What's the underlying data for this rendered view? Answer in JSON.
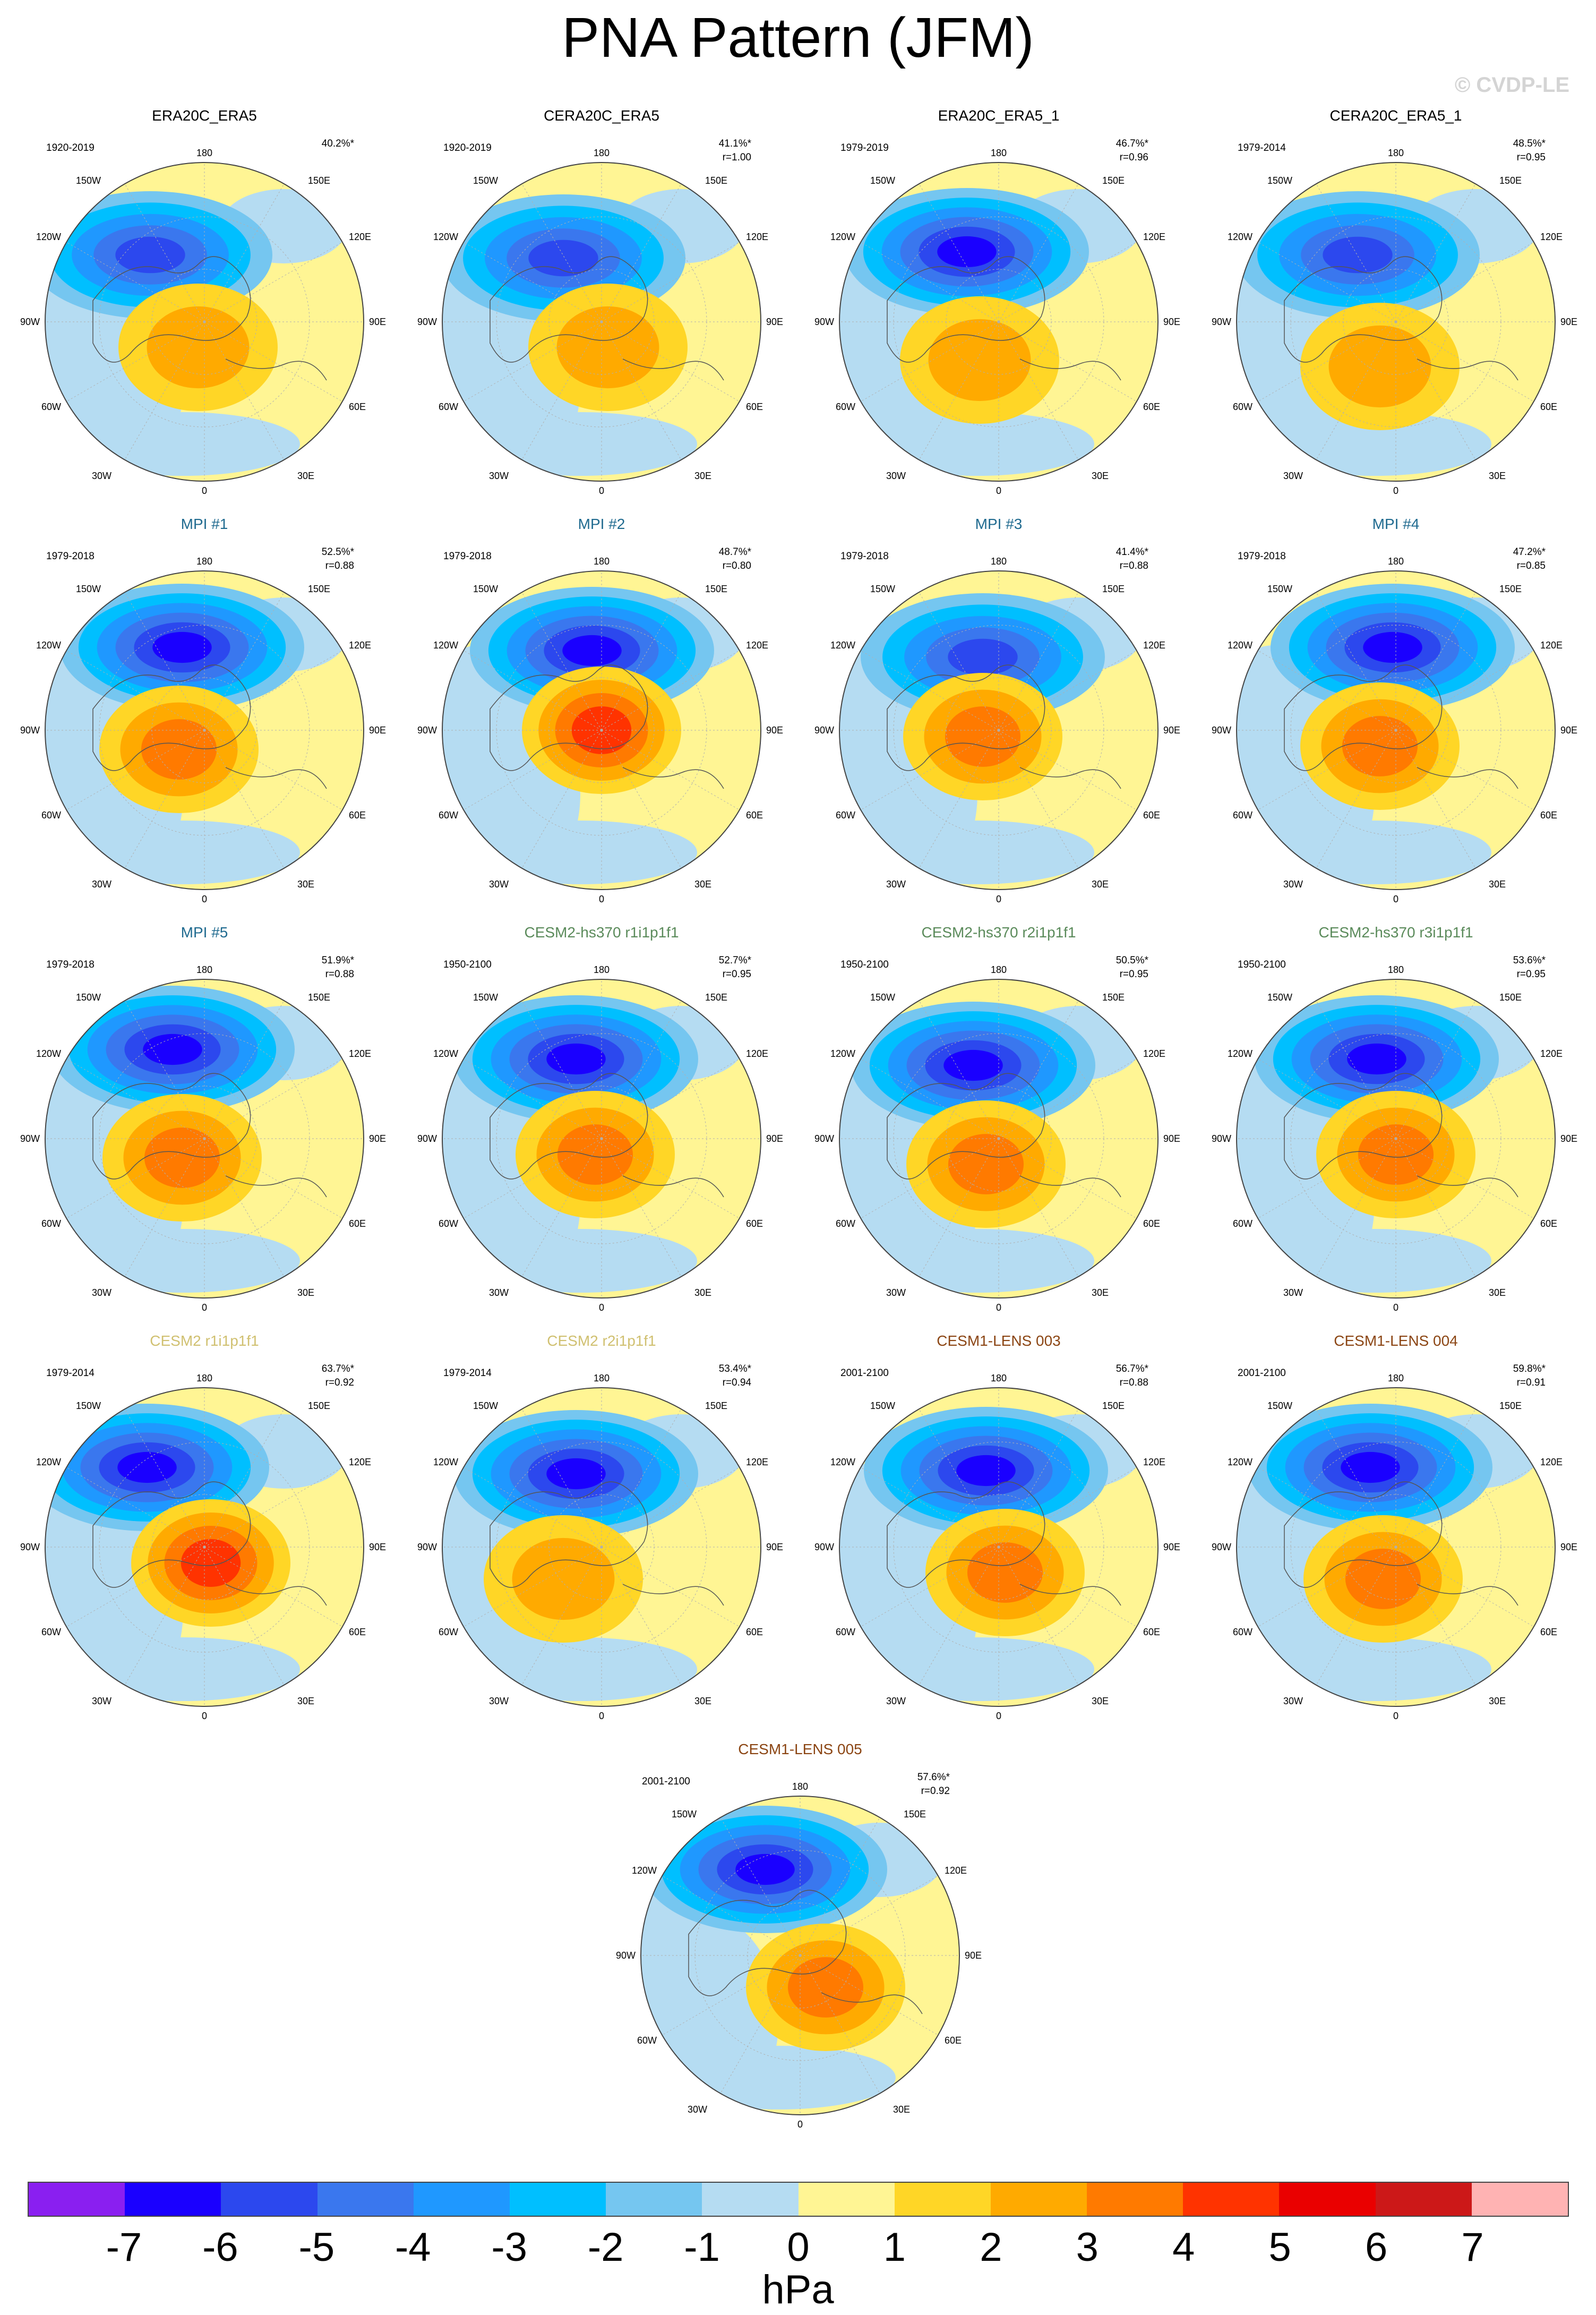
{
  "title": "PNA Pattern (JFM)",
  "watermark": "© CVDP-LE",
  "lon_labels": {
    "top": "180",
    "bottom": "0",
    "l150": "150W",
    "r150": "150E",
    "l120": "120W",
    "r120": "120E",
    "l90": "90W",
    "r90": "90E",
    "l60": "60W",
    "r60": "60E",
    "l30": "30W",
    "r30": "30E"
  },
  "panels": [
    {
      "title": "ERA20C_ERA5",
      "period": "1920-2019",
      "pct": "40.2%*",
      "r": "",
      "color": "#000000",
      "neg": 0.85,
      "pos": 0.55,
      "lowc": [
        0.33,
        0.29
      ],
      "highc": [
        0.48,
        0.58
      ]
    },
    {
      "title": "CERA20C_ERA5",
      "period": "1920-2019",
      "pct": "41.1%*",
      "r": "r=1.00",
      "color": "#000000",
      "neg": 0.85,
      "pos": 0.55,
      "lowc": [
        0.38,
        0.3
      ],
      "highc": [
        0.52,
        0.58
      ]
    },
    {
      "title": "ERA20C_ERA5_1",
      "period": "1979-2019",
      "pct": "46.7%*",
      "r": "r=0.96",
      "color": "#000000",
      "neg": 0.95,
      "pos": 0.5,
      "lowc": [
        0.4,
        0.28
      ],
      "highc": [
        0.44,
        0.62
      ]
    },
    {
      "title": "CERA20C_ERA5_1",
      "period": "1979-2014",
      "pct": "48.5%*",
      "r": "r=0.95",
      "color": "#000000",
      "neg": 0.9,
      "pos": 0.55,
      "lowc": [
        0.38,
        0.29
      ],
      "highc": [
        0.45,
        0.64
      ]
    },
    {
      "title": "MPI #1",
      "period": "1979-2018",
      "pct": "52.5%*",
      "r": "r=0.88",
      "color": "#1f6a8f",
      "neg": 1.0,
      "pos": 0.75,
      "lowc": [
        0.43,
        0.24
      ],
      "highc": [
        0.42,
        0.56
      ]
    },
    {
      "title": "MPI #2",
      "period": "1979-2018",
      "pct": "48.7%*",
      "r": "r=0.80",
      "color": "#1f6a8f",
      "neg": 0.95,
      "pos": 0.9,
      "lowc": [
        0.47,
        0.25
      ],
      "highc": [
        0.5,
        0.5
      ]
    },
    {
      "title": "MPI #3",
      "period": "1979-2018",
      "pct": "41.4%*",
      "r": "r=0.88",
      "color": "#1f6a8f",
      "neg": 0.9,
      "pos": 0.65,
      "lowc": [
        0.45,
        0.27
      ],
      "highc": [
        0.45,
        0.52
      ]
    },
    {
      "title": "MPI #4",
      "period": "1979-2018",
      "pct": "47.2%*",
      "r": "r=0.85",
      "color": "#1f6a8f",
      "neg": 0.95,
      "pos": 0.75,
      "lowc": [
        0.49,
        0.24
      ],
      "highc": [
        0.45,
        0.55
      ]
    },
    {
      "title": "MPI #5",
      "period": "1979-2018",
      "pct": "51.9%*",
      "r": "r=0.88",
      "color": "#1f6a8f",
      "neg": 1.0,
      "pos": 0.7,
      "lowc": [
        0.4,
        0.22
      ],
      "highc": [
        0.43,
        0.56
      ]
    },
    {
      "title": "CESM2-hs370 r1i1p1f1",
      "period": "1950-2100",
      "pct": "52.7%*",
      "r": "r=0.95",
      "color": "#5a8a5a",
      "neg": 1.0,
      "pos": 0.75,
      "lowc": [
        0.42,
        0.25
      ],
      "highc": [
        0.48,
        0.55
      ]
    },
    {
      "title": "CESM2-hs370 r2i1p1f1",
      "period": "1950-2100",
      "pct": "50.5%*",
      "r": "r=0.95",
      "color": "#5a8a5a",
      "neg": 1.0,
      "pos": 0.7,
      "lowc": [
        0.42,
        0.27
      ],
      "highc": [
        0.46,
        0.58
      ]
    },
    {
      "title": "CESM2-hs370 r3i1p1f1",
      "period": "1950-2100",
      "pct": "53.6%*",
      "r": "r=0.95",
      "color": "#5a8a5a",
      "neg": 1.0,
      "pos": 0.8,
      "lowc": [
        0.44,
        0.25
      ],
      "highc": [
        0.5,
        0.55
      ]
    },
    {
      "title": "CESM2 r1i1p1f1",
      "period": "1979-2014",
      "pct": "63.7%*",
      "r": "r=0.92",
      "color": "#d0c070",
      "neg": 1.0,
      "pos": 0.95,
      "lowc": [
        0.32,
        0.25
      ],
      "highc": [
        0.52,
        0.55
      ]
    },
    {
      "title": "CESM2 r2i1p1f1",
      "period": "1979-2014",
      "pct": "53.4%*",
      "r": "r=0.94",
      "color": "#d0c070",
      "neg": 1.0,
      "pos": 0.6,
      "lowc": [
        0.42,
        0.27
      ],
      "highc": [
        0.38,
        0.6
      ]
    },
    {
      "title": "CESM1-LENS 003",
      "period": "2001-2100",
      "pct": "56.7%*",
      "r": "r=0.88",
      "color": "#8b4513",
      "neg": 1.0,
      "pos": 0.8,
      "lowc": [
        0.46,
        0.26
      ],
      "highc": [
        0.52,
        0.58
      ]
    },
    {
      "title": "CESM1-LENS 004",
      "period": "2001-2100",
      "pct": "59.8%*",
      "r": "r=0.91",
      "color": "#8b4513",
      "neg": 1.0,
      "pos": 0.8,
      "lowc": [
        0.42,
        0.25
      ],
      "highc": [
        0.46,
        0.6
      ]
    },
    {
      "title": "CESM1-LENS 005",
      "period": "2001-2100",
      "pct": "57.6%*",
      "r": "r=0.92",
      "color": "#8b4513",
      "neg": 1.0,
      "pos": 0.8,
      "lowc": [
        0.39,
        0.23
      ],
      "highc": [
        0.58,
        0.6
      ]
    }
  ],
  "colorbar": {
    "colors": [
      "#8a1ff0",
      "#1a00ff",
      "#2c48ee",
      "#3a77ee",
      "#1f98ff",
      "#00bfff",
      "#75c6f0",
      "#b5dcf2",
      "#fff594",
      "#ffd626",
      "#ffaa00",
      "#ff7a00",
      "#ff3300",
      "#ea0000",
      "#cc1818",
      "#ffb3b3"
    ],
    "ticks": [
      "-7",
      "-6",
      "-5",
      "-4",
      "-3",
      "-2",
      "-1",
      "0",
      "1",
      "2",
      "3",
      "4",
      "5",
      "6",
      "7"
    ],
    "units": "hPa"
  }
}
